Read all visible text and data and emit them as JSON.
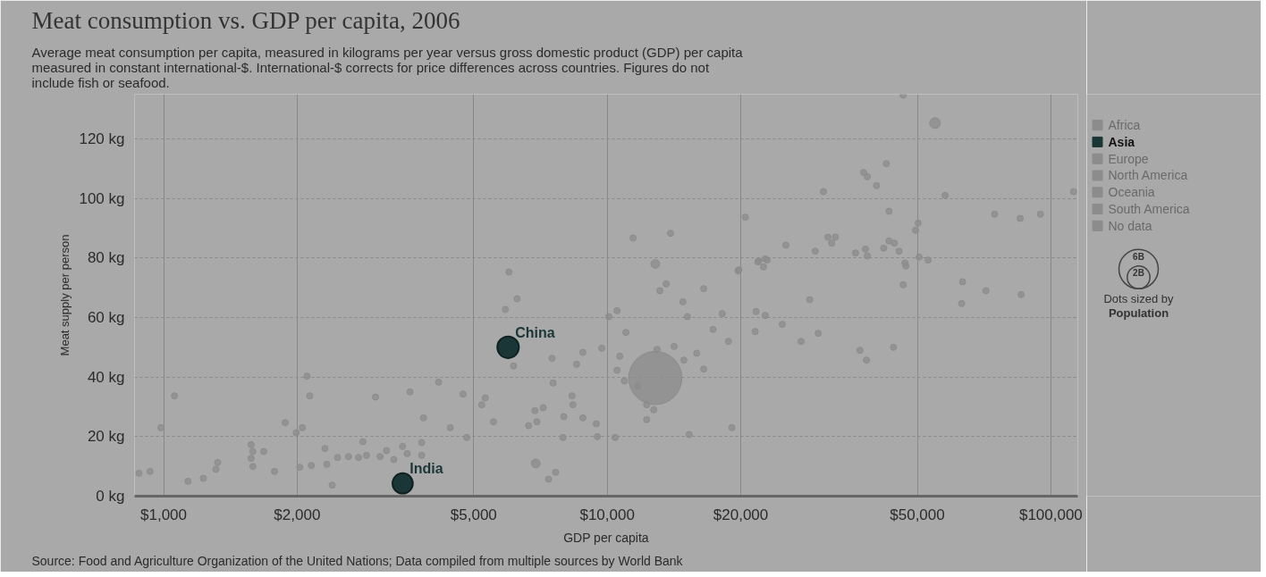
{
  "chart_data": {
    "type": "bubble",
    "title": "Meat consumption vs. GDP per capita, 2006",
    "subtitle": "Average meat consumption per capita, measured in kilograms per year versus gross domestic product (GDP) per capita measured in constant international-$. International-$ corrects for price differences across countries. Figures do not include fish or seafood.",
    "xlabel": "GDP per capita",
    "ylabel": "Meat supply per person",
    "log": "x",
    "grid": true,
    "legend": "right",
    "marker": "circle",
    "xlim": [
      860,
      115000
    ],
    "ylim": [
      0,
      135
    ],
    "xticks": [
      {
        "value": 1000,
        "label": "$1,000"
      },
      {
        "value": 2000,
        "label": "$2,000"
      },
      {
        "value": 5000,
        "label": "$5,000"
      },
      {
        "value": 10000,
        "label": "$10,000"
      },
      {
        "value": 20000,
        "label": "$20,000"
      },
      {
        "value": 50000,
        "label": "$50,000"
      },
      {
        "value": 100000,
        "label": "$100,000"
      }
    ],
    "yticks": [
      {
        "value": 0,
        "label": "0 kg"
      },
      {
        "value": 20,
        "label": "20 kg"
      },
      {
        "value": 40,
        "label": "40 kg"
      },
      {
        "value": 60,
        "label": "60 kg"
      },
      {
        "value": 80,
        "label": "80 kg"
      },
      {
        "value": 100,
        "label": "100 kg"
      },
      {
        "value": 120,
        "label": "120 kg"
      }
    ],
    "size_legend": [
      {
        "value": 6000000000,
        "label": "6B"
      },
      {
        "value": 2000000000,
        "label": "2B"
      }
    ],
    "series": [
      {
        "color": "#8c8c8c",
        "x": [
          880,
          932,
          1058,
          986,
          1135,
          1229,
          1324,
          1312,
          1575,
          1589,
          1575,
          1589,
          1681,
          1778,
          1880,
          1990,
          2055,
          2104,
          2135,
          2028,
          2153,
          2310,
          2333,
          2399,
          2466,
          2611,
          2750,
          2813,
          2866,
          3004,
          3076,
          3180,
          3302,
          3458,
          3540,
          3593,
          3817,
          3817,
          3853,
          4167,
          4428,
          4733,
          4823,
          5213,
          5311,
          5541,
          6003,
          6262,
          5894,
          11437,
          13890,
          12832,
          13580,
          13140,
          16500,
          14810,
          10520,
          10080,
          15160,
          18160,
          21650,
          22700,
          11020,
          17320,
          18760,
          21550,
          21950,
          22700,
          19710,
          6150,
          7510,
          7550,
          8530,
          8810,
          9720,
          10670,
          10520,
          10930,
          11710,
          12832,
          12950,
          14150,
          14880,
          15910,
          16500,
          12270,
          12730,
          12270,
          15300,
          19100,
          8330,
          8370,
          7170,
          6870,
          6940,
          6650,
          7980,
          8810,
          9450,
          7950,
          9500,
          10420,
          6900,
          7650,
          7370,
          46460,
          54800,
          42570,
          37830,
          38580,
          40470,
          30720,
          57750,
          112500,
          20470,
          43170,
          74700,
          85300,
          94700,
          50230,
          49530,
          31440,
          32680,
          32060,
          25270,
          29430,
          36280,
          38200,
          38580,
          41990,
          43170,
          44390,
          45470,
          46890,
          47110,
          50470,
          52880,
          21860,
          22930,
          22500,
          19800,
          46460,
          63230,
          71410,
          85700,
          62940,
          28610,
          24800,
          27350,
          29890,
          37110,
          38390,
          44180
        ],
        "values": [
          7.7,
          8.3,
          33.7,
          23,
          5,
          6,
          11.3,
          9,
          17.3,
          15,
          12.7,
          10,
          15,
          8.3,
          24.7,
          21.3,
          23,
          40.3,
          33.7,
          9.7,
          10.3,
          16,
          10.7,
          3.7,
          13,
          13.3,
          13,
          18.3,
          13.7,
          33.3,
          13.3,
          15.3,
          12.3,
          16.7,
          14.3,
          35,
          18,
          13.7,
          26.3,
          38.3,
          23,
          34.3,
          19.7,
          30.7,
          33,
          25,
          75.3,
          66.3,
          62.7,
          86.7,
          88.3,
          78,
          71.3,
          69,
          69.7,
          65.3,
          62.3,
          60.3,
          60.3,
          61.3,
          62,
          60.7,
          55,
          56,
          52,
          55.3,
          79,
          79.7,
          75.7,
          43.7,
          46.3,
          38,
          44.3,
          48.3,
          49.7,
          47,
          42.3,
          38.7,
          37,
          39.7,
          49.3,
          50.3,
          45.7,
          48,
          42.7,
          30.7,
          29,
          25.7,
          20.7,
          23,
          33.7,
          30.7,
          29.7,
          28.7,
          25,
          23.7,
          26.7,
          26.3,
          24.3,
          19.7,
          20,
          19.7,
          11,
          8,
          5.7,
          134.7,
          125.3,
          111.7,
          108.7,
          107.3,
          104.3,
          102.3,
          101,
          102.3,
          93.7,
          95.7,
          94.7,
          93.3,
          94.7,
          91.7,
          89.3,
          87,
          87,
          85,
          84.3,
          82.3,
          81.7,
          83,
          80.7,
          83.3,
          85.7,
          85,
          82.3,
          78.3,
          77.3,
          80.3,
          79.3,
          78.7,
          79.3,
          77,
          76,
          71,
          72,
          69,
          67.7,
          64.7,
          66,
          57.7,
          52,
          54.7,
          49,
          45.7,
          50
        ],
        "sizes": [
          150000000,
          150000000,
          150000000,
          150000000,
          150000000,
          150000000,
          150000000,
          150000000,
          150000000,
          150000000,
          150000000,
          150000000,
          150000000,
          150000000,
          150000000,
          150000000,
          150000000,
          150000000,
          150000000,
          150000000,
          150000000,
          150000000,
          150000000,
          150000000,
          150000000,
          150000000,
          150000000,
          150000000,
          150000000,
          150000000,
          150000000,
          150000000,
          150000000,
          150000000,
          150000000,
          150000000,
          150000000,
          150000000,
          150000000,
          150000000,
          150000000,
          150000000,
          150000000,
          150000000,
          150000000,
          150000000,
          150000000,
          150000000,
          150000000,
          150000000,
          150000000,
          300000000,
          150000000,
          150000000,
          150000000,
          150000000,
          150000000,
          150000000,
          150000000,
          150000000,
          150000000,
          150000000,
          150000000,
          150000000,
          150000000,
          150000000,
          150000000,
          150000000,
          150000000,
          150000000,
          150000000,
          150000000,
          150000000,
          150000000,
          150000000,
          150000000,
          150000000,
          150000000,
          150000000,
          11000000000,
          150000000,
          150000000,
          150000000,
          150000000,
          150000000,
          150000000,
          150000000,
          150000000,
          150000000,
          150000000,
          150000000,
          150000000,
          150000000,
          150000000,
          150000000,
          150000000,
          150000000,
          150000000,
          150000000,
          150000000,
          150000000,
          150000000,
          300000000,
          150000000,
          150000000,
          150000000,
          450000000,
          150000000,
          150000000,
          150000000,
          150000000,
          150000000,
          150000000,
          150000000,
          150000000,
          150000000,
          150000000,
          150000000,
          150000000,
          150000000,
          150000000,
          150000000,
          150000000,
          150000000,
          150000000,
          150000000,
          150000000,
          150000000,
          150000000,
          150000000,
          150000000,
          150000000,
          150000000,
          150000000,
          150000000,
          150000000,
          150000000,
          150000000,
          150000000,
          150000000,
          150000000,
          150000000,
          150000000,
          150000000,
          150000000,
          150000000,
          150000000,
          150000000,
          150000000,
          150000000,
          150000000,
          150000000,
          150000000
        ]
      },
      {
        "name": "Africa",
        "color": "#8c8c8c"
      },
      {
        "name": "Asia",
        "color": "#1b3636",
        "x": [
          3458,
          5977
        ],
        "values": [
          4.3,
          50
        ],
        "sizes": [
          1600000000,
          1800000000
        ]
      },
      {
        "name": "Europe",
        "color": "#8c8c8c"
      },
      {
        "name": "North America",
        "color": "#8c8c8c"
      },
      {
        "name": "Oceania",
        "color": "#8c8c8c"
      },
      {
        "name": "South America",
        "color": "#8c8c8c"
      },
      {
        "name": "No data",
        "color": "#8c8c8c"
      }
    ],
    "annotations": [
      {
        "text": "India",
        "x": 3458,
        "y": 4.3
      },
      {
        "text": "China",
        "x": 5977,
        "y": 50
      },
      "Dots sized by Population",
      "Source: Food and Agriculture Organization of the United Nations; Data compiled from multiple sources by World Bank"
    ]
  }
}
